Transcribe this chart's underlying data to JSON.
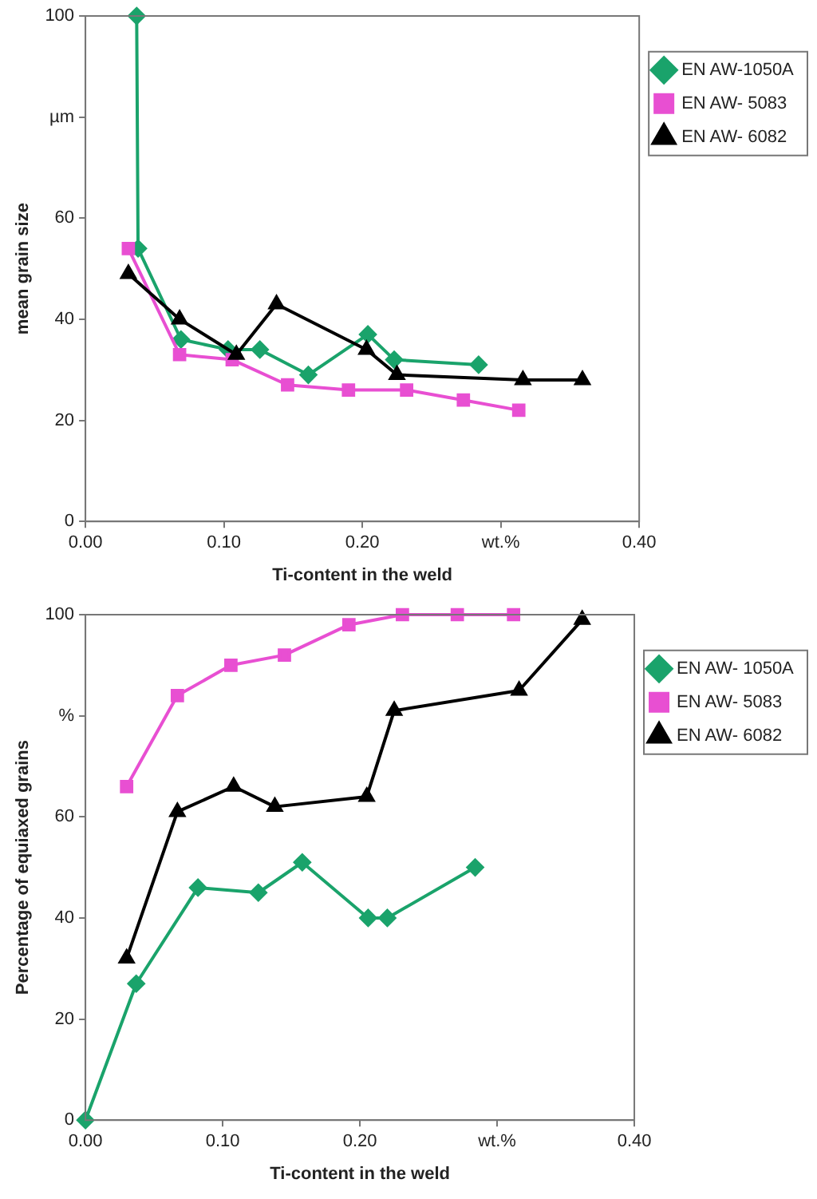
{
  "chart_data": [
    {
      "type": "line",
      "xlabel": "Ti-content in the weld",
      "ylabel": "mean grain size",
      "xlim": [
        0,
        0.4
      ],
      "ylim": [
        0,
        100
      ],
      "xticks": [
        {
          "value": 0,
          "label": "0.00"
        },
        {
          "value": 0.1,
          "label": "0.10"
        },
        {
          "value": 0.2,
          "label": "0.20"
        },
        {
          "value": 0.3,
          "label": "wt.%"
        },
        {
          "value": 0.4,
          "label": "0.40"
        }
      ],
      "yticks": [
        0,
        20,
        40,
        60,
        {
          "value": 80,
          "label": "µm"
        },
        100
      ],
      "grid": false,
      "legend": "top right",
      "series": [
        {
          "name": "EN AW-1050A",
          "color": "#1aa36b",
          "marker": "diamond",
          "x": [
            0.037,
            0.038,
            0.069,
            0.103,
            0.126,
            0.161,
            0.204,
            0.223,
            0.284
          ],
          "values": [
            100,
            54,
            36,
            34,
            34,
            29,
            37,
            32,
            31
          ]
        },
        {
          "name": "EN AW- 5083",
          "color": "#e84fd2",
          "marker": "square",
          "x": [
            0.031,
            0.068,
            0.106,
            0.146,
            0.19,
            0.232,
            0.273,
            0.313
          ],
          "values": [
            54,
            33,
            32,
            27,
            26,
            26,
            24,
            22
          ]
        },
        {
          "name": "EN AW- 6082",
          "color": "#000000",
          "marker": "triangle",
          "x": [
            0.031,
            0.068,
            0.109,
            0.138,
            0.203,
            0.225,
            0.316,
            0.359
          ],
          "values": [
            49,
            40,
            33,
            43,
            34,
            29,
            28,
            28
          ]
        }
      ]
    },
    {
      "type": "line",
      "xlabel": "Ti-content in the weld",
      "ylabel": "Percentage of equiaxed grains",
      "xlim": [
        0,
        0.4
      ],
      "ylim": [
        0,
        100
      ],
      "xticks": [
        {
          "value": 0,
          "label": "0.00"
        },
        {
          "value": 0.1,
          "label": "0.10"
        },
        {
          "value": 0.2,
          "label": "0.20"
        },
        {
          "value": 0.3,
          "label": "wt.%"
        },
        {
          "value": 0.4,
          "label": "0.40"
        }
      ],
      "yticks": [
        0,
        20,
        40,
        60,
        {
          "value": 80,
          "label": "%"
        },
        100
      ],
      "grid": false,
      "legend": "top right",
      "series": [
        {
          "name": "EN AW- 1050A",
          "color": "#1aa36b",
          "marker": "diamond",
          "x": [
            0,
            0.037,
            0.082,
            0.126,
            0.158,
            0.206,
            0.22,
            0.284
          ],
          "values": [
            0,
            27,
            46,
            45,
            51,
            40,
            40,
            50
          ]
        },
        {
          "name": "EN AW- 5083",
          "color": "#e84fd2",
          "marker": "square",
          "x": [
            0.03,
            0.067,
            0.106,
            0.145,
            0.192,
            0.231,
            0.271,
            0.312
          ],
          "values": [
            66,
            84,
            90,
            92,
            98,
            100,
            100,
            100
          ]
        },
        {
          "name": "EN AW- 6082",
          "color": "#000000",
          "marker": "triangle",
          "x": [
            0.03,
            0.067,
            0.108,
            0.138,
            0.205,
            0.225,
            0.316,
            0.362
          ],
          "values": [
            32,
            61,
            66,
            62,
            64,
            81,
            85,
            99
          ]
        }
      ]
    }
  ]
}
